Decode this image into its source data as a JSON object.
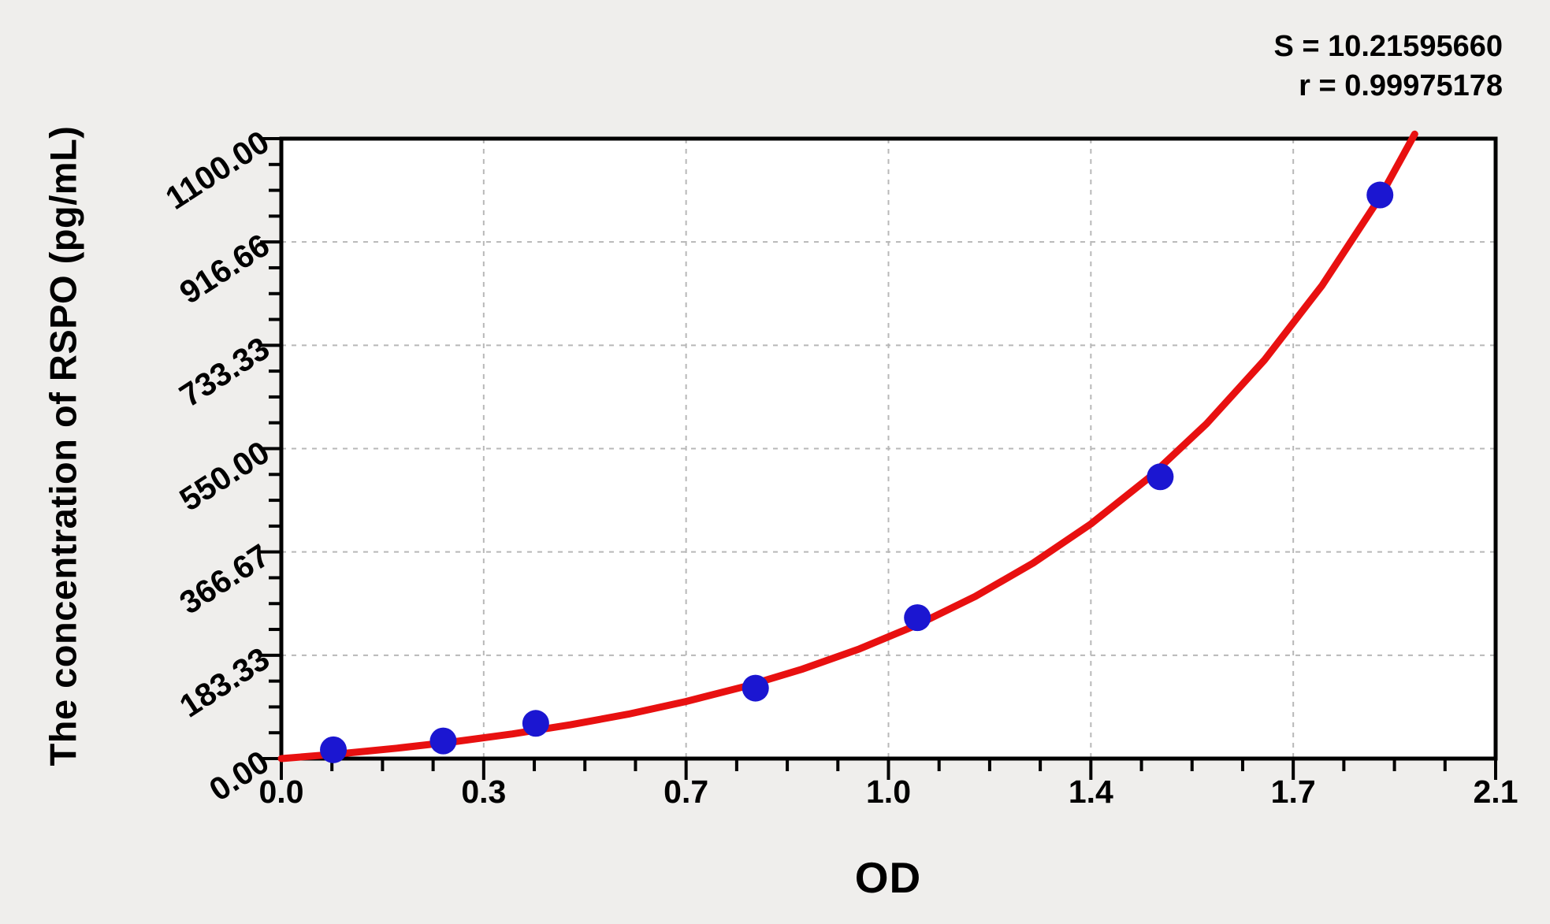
{
  "annotation": {
    "s_line": "S = 10.21595660",
    "r_line": "r = 0.99975178"
  },
  "chart_data": {
    "type": "scatter",
    "title": "",
    "xlabel": "OD",
    "ylabel": "The concentration of RSPO (pg/mL)",
    "xlim": [
      0,
      2.1
    ],
    "ylim": [
      0,
      1100
    ],
    "grid": {
      "show": true,
      "style": "dashed",
      "color": "#b8b8b8"
    },
    "legend": "none",
    "x_major_ticks": {
      "values": [
        0,
        0.35,
        0.7,
        1.05,
        1.4,
        1.75,
        2.1
      ],
      "labels": [
        "0.0",
        "0.3",
        "0.7",
        "1.0",
        "1.4",
        "1.7",
        "2.1"
      ]
    },
    "y_major_ticks": {
      "values": [
        0,
        183.33,
        366.67,
        550.0,
        733.33,
        916.66,
        1100.0
      ],
      "labels": [
        "0.00",
        "183.33",
        "366.67",
        "550.00",
        "733.33",
        "916.66",
        "1100.00"
      ]
    },
    "minor_divisions_per_major": 4,
    "fit_stats": {
      "S": "10.21595660",
      "r": "0.99975178"
    },
    "series": [
      {
        "name": "standard-points",
        "type": "scatter",
        "color": "#1b16d1",
        "marker_radius_px": 17,
        "points": [
          {
            "od": 0.09,
            "concentration": 15.6
          },
          {
            "od": 0.28,
            "concentration": 31.25
          },
          {
            "od": 0.44,
            "concentration": 62.5
          },
          {
            "od": 0.82,
            "concentration": 125
          },
          {
            "od": 1.1,
            "concentration": 250
          },
          {
            "od": 1.52,
            "concentration": 500
          },
          {
            "od": 1.9,
            "concentration": 1000
          }
        ]
      },
      {
        "name": "fitted-curve",
        "type": "line",
        "color": "#e81010",
        "stroke_width_px": 9,
        "samples": [
          [
            0,
            0
          ],
          [
            0.1,
            8.4
          ],
          [
            0.2,
            18.4
          ],
          [
            0.3,
            30.1
          ],
          [
            0.4,
            43.8
          ],
          [
            0.5,
            59.9
          ],
          [
            0.6,
            78.9
          ],
          [
            0.7,
            101.3
          ],
          [
            0.8,
            127.5
          ],
          [
            0.9,
            158.4
          ],
          [
            1.0,
            194.7
          ],
          [
            1.1,
            237.5
          ],
          [
            1.2,
            287.7
          ],
          [
            1.3,
            346.8
          ],
          [
            1.4,
            416.2
          ],
          [
            1.5,
            497.9
          ],
          [
            1.6,
            594.0
          ],
          [
            1.7,
            706.9
          ],
          [
            1.8,
            839.7
          ],
          [
            1.9,
            995.9
          ],
          [
            1.96,
            1108
          ]
        ]
      }
    ],
    "colors": {
      "page_bg": "#efeeec",
      "plot_bg": "#ffffff",
      "axis": "#000000",
      "text": "#000000"
    }
  }
}
